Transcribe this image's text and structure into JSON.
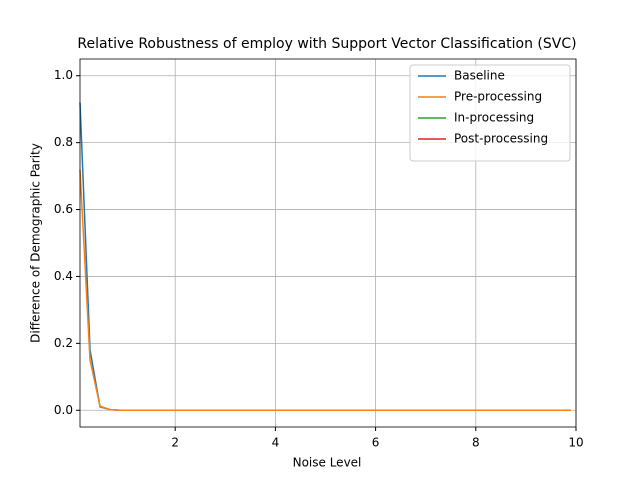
{
  "chart_data": {
    "type": "line",
    "title": "Relative Robustness of employ with Support Vector Classification (SVC)",
    "xlabel": "Noise Level",
    "ylabel": "Difference of Demographic Parity",
    "x": [
      0.1,
      0.3,
      0.5,
      0.7,
      0.9,
      1.1,
      1.3,
      1.5,
      1.7,
      1.9,
      2.1,
      2.3,
      2.5,
      2.7,
      2.9,
      3.1,
      3.3,
      3.5,
      3.7,
      3.9,
      4.1,
      4.3,
      4.5,
      4.7,
      4.9,
      5.1,
      5.3,
      5.5,
      5.7,
      5.9,
      6.1,
      6.3,
      6.5,
      6.7,
      6.9,
      7.1,
      7.3,
      7.5,
      7.7,
      7.9,
      8.1,
      8.3,
      8.5,
      8.7,
      8.9,
      9.1,
      9.3,
      9.5,
      9.7,
      9.9
    ],
    "series": [
      {
        "name": "Baseline",
        "color": "#1f77b4",
        "values": [
          0.92,
          0.18,
          0.01,
          0.002,
          0,
          0,
          0,
          0,
          0,
          0,
          0,
          0,
          0,
          0,
          0,
          0,
          0,
          0,
          0,
          0,
          0,
          0,
          0,
          0,
          0,
          0,
          0,
          0,
          0,
          0,
          0,
          0,
          0,
          0,
          0,
          0,
          0,
          0,
          0,
          0,
          0,
          0,
          0,
          0,
          0,
          0,
          0,
          0,
          0,
          0
        ]
      },
      {
        "name": "Pre-processing",
        "color": "#ff7f0e",
        "values": [
          0.72,
          0.15,
          0.012,
          0.002,
          0,
          0,
          0,
          0,
          0,
          0,
          0,
          0,
          0,
          0,
          0,
          0,
          0,
          0,
          0,
          0,
          0,
          0,
          0,
          0,
          0,
          0,
          0,
          0,
          0,
          0,
          0,
          0,
          0,
          0,
          0,
          0,
          0,
          0,
          0,
          0,
          0,
          0,
          0,
          0,
          0,
          0,
          0,
          0,
          0,
          0
        ]
      },
      {
        "name": "In-processing",
        "color": "#2ca02c",
        "values": [
          null,
          null,
          null,
          null,
          null,
          null,
          null,
          null,
          null,
          null,
          null,
          null,
          null,
          null,
          null,
          null,
          null,
          null,
          null,
          null,
          null,
          null,
          null,
          null,
          null,
          null,
          null,
          null,
          null,
          null,
          null,
          null,
          null,
          null,
          null,
          null,
          null,
          null,
          null,
          null,
          null,
          null,
          null,
          null,
          null,
          null,
          null,
          null,
          null,
          null
        ]
      },
      {
        "name": "Post-processing",
        "color": "#d62728",
        "values": [
          null,
          null,
          null,
          null,
          null,
          null,
          null,
          null,
          null,
          null,
          null,
          null,
          null,
          null,
          null,
          null,
          null,
          null,
          null,
          null,
          null,
          null,
          null,
          null,
          null,
          null,
          null,
          null,
          null,
          null,
          null,
          null,
          null,
          null,
          null,
          null,
          null,
          null,
          null,
          null,
          null,
          null,
          null,
          null,
          null,
          null,
          null,
          null,
          null,
          null
        ]
      }
    ],
    "xlim": [
      0.1,
      10
    ],
    "xticks": [
      2,
      4,
      6,
      8,
      10
    ],
    "ylim": [
      -0.05,
      1.05
    ],
    "yticks": [
      {
        "value": 0,
        "label": "0.0"
      },
      0.2,
      0.4,
      0.6,
      0.8,
      {
        "value": 1,
        "label": "1.0"
      }
    ],
    "grid": true,
    "legend": "upper right"
  }
}
